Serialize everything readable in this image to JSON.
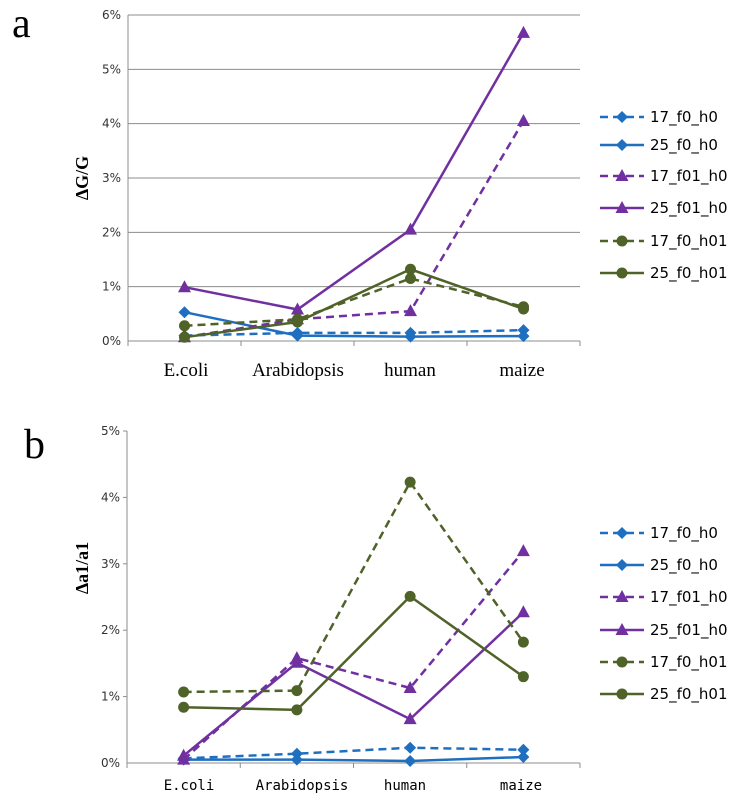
{
  "series_style": [
    {
      "color": "#1f6fc0",
      "dash": true,
      "marker": "diamond"
    },
    {
      "color": "#1f6fc0",
      "dash": false,
      "marker": "diamond"
    },
    {
      "color": "#7030a0",
      "dash": true,
      "marker": "triangle"
    },
    {
      "color": "#7030a0",
      "dash": false,
      "marker": "triangle"
    },
    {
      "color": "#4f6228",
      "dash": true,
      "marker": "circle"
    },
    {
      "color": "#4f6228",
      "dash": false,
      "marker": "circle"
    }
  ],
  "chart_data": [
    {
      "panel_label": "a",
      "type": "line",
      "ylabel": "ΔG/G",
      "categories": [
        "E.coli",
        "Arabidopsis",
        "human",
        "maize"
      ],
      "ylim": [
        0,
        6
      ],
      "yticks": [
        "0%",
        "1%",
        "2%",
        "3%",
        "4%",
        "5%",
        "6%"
      ],
      "grid": true,
      "legend_position": "right",
      "series": [
        {
          "name": "17_f0_h0",
          "values": [
            0.1,
            0.15,
            0.15,
            0.2
          ]
        },
        {
          "name": "25_f0_h0",
          "values": [
            0.53,
            0.1,
            0.08,
            0.09
          ]
        },
        {
          "name": "17_f01_h0",
          "values": [
            0.07,
            0.4,
            0.55,
            4.05
          ]
        },
        {
          "name": "25_f01_h0",
          "values": [
            0.99,
            0.58,
            2.05,
            5.67
          ]
        },
        {
          "name": "17_f0_h01",
          "values": [
            0.28,
            0.4,
            1.15,
            0.63
          ]
        },
        {
          "name": "25_f0_h01",
          "values": [
            0.07,
            0.35,
            1.32,
            0.59
          ]
        }
      ]
    },
    {
      "panel_label": "b",
      "type": "line",
      "ylabel": "Δa1/a1",
      "categories": [
        "E.coli",
        "Arabidopsis",
        "human",
        "maize"
      ],
      "ylim": [
        0,
        5
      ],
      "yticks": [
        "0%",
        "1%",
        "2%",
        "3%",
        "4%",
        "5%"
      ],
      "grid": false,
      "legend_position": "right",
      "series": [
        {
          "name": "17_f0_h0",
          "values": [
            0.07,
            0.14,
            0.23,
            0.2
          ]
        },
        {
          "name": "25_f0_h0",
          "values": [
            0.05,
            0.05,
            0.03,
            0.09
          ]
        },
        {
          "name": "17_f01_h0",
          "values": [
            0.05,
            1.58,
            1.13,
            3.19
          ]
        },
        {
          "name": "25_f01_h0",
          "values": [
            0.11,
            1.51,
            0.66,
            2.27
          ]
        },
        {
          "name": "17_f0_h01",
          "values": [
            1.07,
            1.09,
            4.23,
            1.82
          ]
        },
        {
          "name": "25_f0_h01",
          "values": [
            0.84,
            0.8,
            2.51,
            1.3
          ]
        }
      ]
    }
  ]
}
